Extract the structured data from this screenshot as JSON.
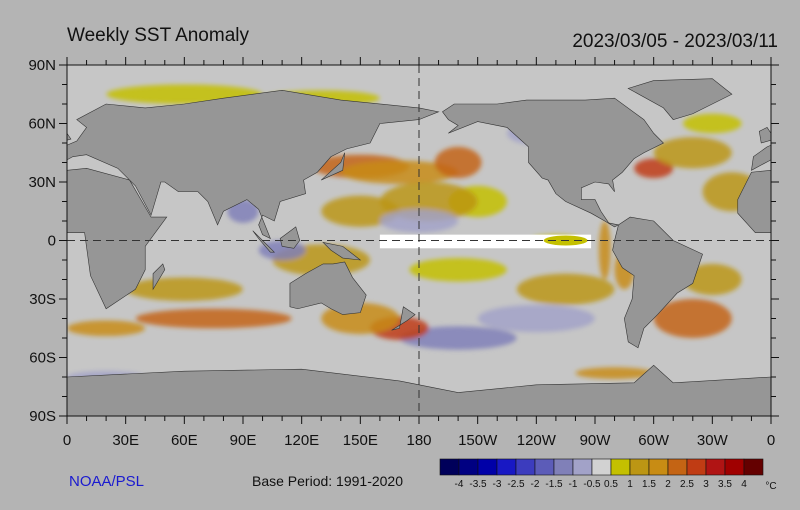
{
  "title": "Weekly SST Anomaly",
  "date_range": "2023/03/05 - 2023/03/11",
  "credit": "NOAA/PSL",
  "base_period": "Base Period: 1991-2020",
  "lat_labels": [
    "90N",
    "60N",
    "30N",
    "0",
    "30S",
    "60S",
    "90S"
  ],
  "lon_labels": [
    "0",
    "30E",
    "60E",
    "90E",
    "120E",
    "150E",
    "180",
    "150W",
    "120W",
    "90W",
    "60W",
    "30W",
    "0"
  ],
  "colorbar": {
    "unit": "°C",
    "labels": [
      "-4",
      "-3.5",
      "-3",
      "-2.5",
      "-2",
      "-1.5",
      "-1",
      "-0.5",
      "0.5",
      "1",
      "1.5",
      "2",
      "2.5",
      "3",
      "3.5",
      "4"
    ],
    "colors": [
      "#00005a",
      "#000082",
      "#0000a8",
      "#1818c4",
      "#3c3cbe",
      "#5c5cb8",
      "#8080b8",
      "#a2a2c8",
      "#d2d2d2",
      "#c4c000",
      "#bc9614",
      "#c88c14",
      "#c46414",
      "#c03c14",
      "#b01414",
      "#a00000",
      "#640000"
    ]
  },
  "colors": {
    "land": "#969696",
    "ocean": "#c6c6c6",
    "background": "#b4b4b4",
    "missing": "#ffffff"
  }
}
